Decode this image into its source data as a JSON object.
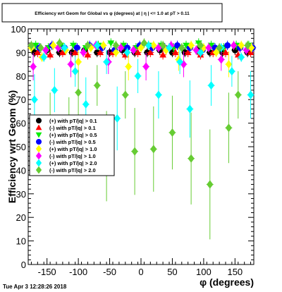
{
  "chart_data": {
    "type": "scatter",
    "title": "Efficiency wrt Geom for Global vs φ (degrees) at | η | <= 1.0 at pT > 0.11",
    "xlabel": "φ (degrees)",
    "ylabel": "Efficiency wrt Geom (%)",
    "xlim": [
      -180,
      180
    ],
    "ylim": [
      0,
      100
    ],
    "xticks": [
      -150,
      -100,
      -50,
      0,
      50,
      100,
      150
    ],
    "yticks": [
      0,
      10,
      20,
      30,
      40,
      50,
      60,
      70,
      80,
      90,
      100
    ],
    "grid": false,
    "legend_position": "left-middle",
    "series": [
      {
        "name": "(+) with pT/|q| > 0.1",
        "color": "#000000",
        "marker": "circle",
        "x": [
          -170,
          -150,
          -130,
          -110,
          -90,
          -70,
          -50,
          -30,
          -10,
          10,
          30,
          50,
          70,
          90,
          110,
          130,
          150,
          170
        ],
        "y": [
          90,
          91,
          90,
          90,
          91,
          90,
          90,
          91,
          90,
          90,
          91,
          90,
          90,
          91,
          90,
          90,
          91,
          90
        ]
      },
      {
        "name": "(-) with pT/|q| > 0.1",
        "color": "#ff0000",
        "marker": "triangle-up",
        "x": [
          -165,
          -145,
          -125,
          -105,
          -85,
          -65,
          -45,
          -25,
          -5,
          15,
          35,
          55,
          75,
          95,
          115,
          135,
          155,
          175
        ],
        "y": [
          90,
          89,
          90,
          90,
          89,
          90,
          90,
          89,
          90,
          90,
          89,
          90,
          90,
          89,
          90,
          90,
          89,
          90
        ]
      },
      {
        "name": "(+) with pT/|q| > 0.5",
        "color": "#00ee00",
        "marker": "triangle-down",
        "x": [
          -168,
          -148,
          -128,
          -108,
          -88,
          -68,
          -48,
          -28,
          -8,
          12,
          32,
          52,
          72,
          92,
          112,
          132,
          152,
          172
        ],
        "y": [
          93,
          92,
          93,
          93,
          92,
          93,
          94,
          93,
          92,
          93,
          93,
          92,
          93,
          94,
          93,
          92,
          93,
          93
        ]
      },
      {
        "name": "(-) with pT/|q| > 0.5",
        "color": "#0000ff",
        "marker": "circle",
        "x": [
          -162,
          -142,
          -122,
          -102,
          -82,
          -62,
          -42,
          -22,
          -2,
          18,
          38,
          58,
          78,
          98,
          118,
          138,
          158,
          178
        ],
        "y": [
          92,
          93,
          92,
          92,
          93,
          92,
          91,
          92,
          93,
          92,
          92,
          93,
          92,
          91,
          92,
          93,
          92,
          92
        ]
      },
      {
        "name": "(+) with pT/|q| > 1.0",
        "color": "#ffff00",
        "marker": "diamond",
        "x": [
          -175,
          -158,
          -140,
          -120,
          -100,
          -80,
          -60,
          -40,
          -20,
          0,
          20,
          40,
          60,
          80,
          100,
          120,
          140,
          160,
          176
        ],
        "y": [
          92,
          88,
          93,
          91,
          86,
          92,
          93,
          90,
          84,
          92,
          93,
          91,
          87,
          93,
          92,
          90,
          85,
          93,
          92
        ]
      },
      {
        "name": "(-) with pT/|q| > 1.0",
        "color": "#ff00ff",
        "marker": "diamond",
        "x": [
          -172,
          -152,
          -132,
          -112,
          -92,
          -72,
          -52,
          -32,
          -12,
          8,
          28,
          48,
          68,
          88,
          108,
          128,
          148,
          168
        ],
        "y": [
          84,
          91,
          92,
          85,
          90,
          93,
          86,
          92,
          91,
          84,
          92,
          93,
          85,
          91,
          92,
          87,
          93,
          91
        ]
      },
      {
        "name": "(+) with pT/|q| > 2.0",
        "color": "#00ffff",
        "marker": "diamond",
        "x": [
          -170,
          -155,
          -138,
          -122,
          -105,
          -88,
          -70,
          -55,
          -38,
          -22,
          -5,
          12,
          28,
          45,
          62,
          78,
          95,
          112,
          128,
          145,
          160,
          175
        ],
        "y": [
          70,
          88,
          74,
          92,
          82,
          68,
          93,
          86,
          62,
          90,
          80,
          93,
          72,
          92,
          86,
          66,
          90,
          76,
          92,
          82,
          88,
          72
        ]
      },
      {
        "name": "(-) with pT/|q| > 2.0",
        "color": "#66cc33",
        "marker": "diamond",
        "x": [
          -175,
          -160,
          -145,
          -130,
          -115,
          -100,
          -85,
          -70,
          -55,
          -40,
          -25,
          -10,
          5,
          20,
          35,
          50,
          65,
          80,
          95,
          110,
          125,
          140,
          155,
          170
        ],
        "y": [
          93,
          92,
          58,
          94,
          55,
          73,
          93,
          76,
          46,
          93,
          72,
          48,
          94,
          49,
          93,
          56,
          92,
          45,
          93,
          34,
          92,
          58,
          72,
          93
        ]
      }
    ]
  },
  "footer": {
    "timestamp": "Tue Apr  3 12:28:26 2018"
  }
}
